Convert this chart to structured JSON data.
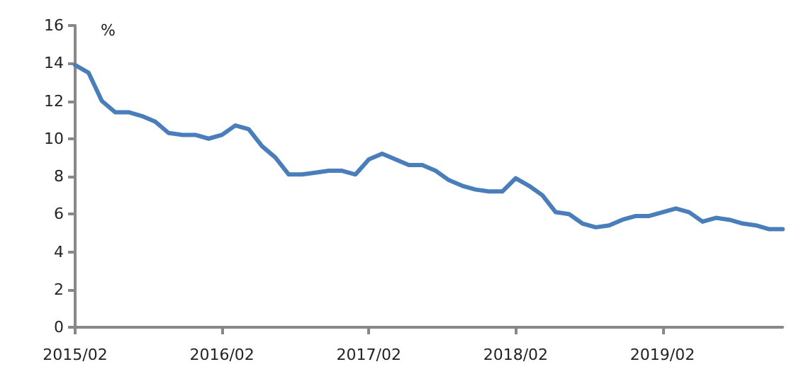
{
  "chart_data": {
    "type": "line",
    "ylabel": "%",
    "categories": [
      "2015/02",
      null,
      null,
      null,
      null,
      null,
      null,
      null,
      null,
      null,
      null,
      "2016/02",
      null,
      null,
      null,
      null,
      null,
      null,
      null,
      null,
      null,
      null,
      "2017/02",
      null,
      null,
      null,
      null,
      null,
      null,
      null,
      null,
      null,
      null,
      "2018/02",
      null,
      null,
      null,
      null,
      null,
      null,
      null,
      null,
      null,
      null,
      "2019/02",
      null,
      null,
      null,
      null,
      null,
      null,
      null,
      null,
      null
    ],
    "series": [
      {
        "color": "#4a7ebb",
        "values": [
          13.9,
          13.5,
          12.0,
          11.4,
          11.4,
          11.2,
          10.9,
          10.3,
          10.2,
          10.2,
          10.0,
          10.2,
          10.7,
          10.5,
          9.6,
          9.0,
          8.1,
          8.1,
          8.2,
          8.3,
          8.3,
          8.1,
          8.9,
          9.2,
          8.9,
          8.6,
          8.6,
          8.3,
          7.8,
          7.5,
          7.3,
          7.2,
          7.2,
          7.9,
          7.5,
          7.0,
          6.1,
          6.0,
          5.5,
          5.3,
          5.4,
          5.7,
          5.9,
          5.9,
          6.1,
          6.3,
          6.1,
          5.6,
          5.8,
          5.7,
          5.5,
          5.4,
          5.2,
          5.2
        ]
      }
    ],
    "ylim": [
      0,
      16
    ],
    "yticks": [
      0,
      2,
      4,
      6,
      8,
      10,
      12,
      14,
      16
    ],
    "grid": false,
    "marker": "none",
    "line_style": "solid"
  }
}
